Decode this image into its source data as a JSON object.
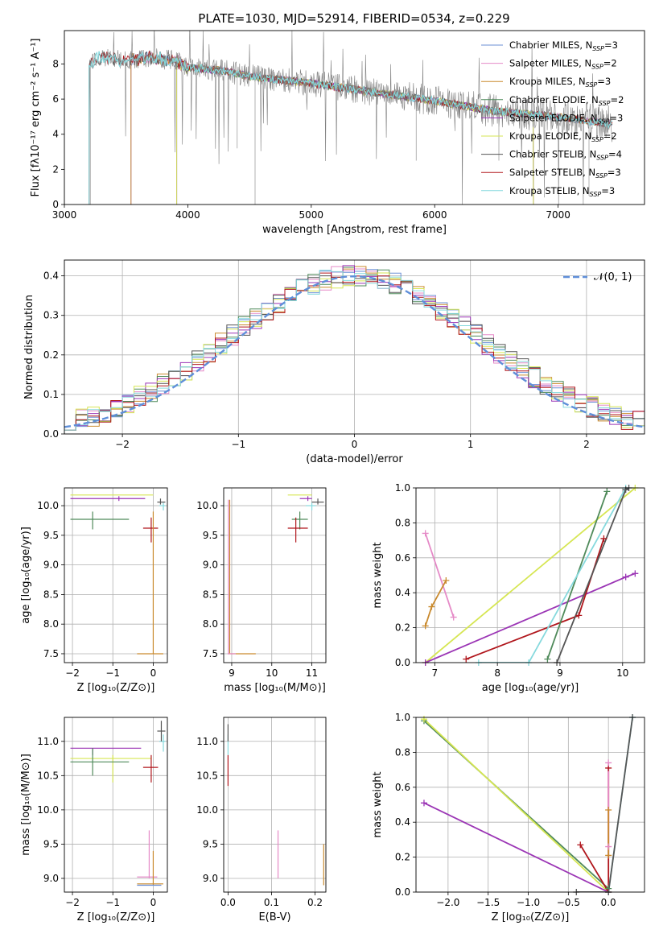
{
  "title": "PLATE=1030, MJD=52914, FIBERID=0534, z=0.229",
  "colors": {
    "Chabrier MILES": "#6b8fd6",
    "Salpeter MILES": "#e58ac7",
    "Kroupa MILES": "#c98a2e",
    "Chabrier ELODIE": "#4f8a5a",
    "Salpeter ELODIE": "#9b35b5",
    "Kroupa ELODIE": "#d6e653",
    "Chabrier STELIB": "#555555",
    "Salpeter STELIB": "#b0161c",
    "Kroupa STELIB": "#86d9dd",
    "data": "#808080",
    "gaussian": "#5f8fd9",
    "orange": "#e07b39"
  },
  "chart_data": [
    {
      "id": "spectrum",
      "type": "line",
      "xlabel": "wavelength [Angstrom, rest frame]",
      "ylabel": "Flux [fλ10⁻¹⁷ erg cm⁻² s⁻¹ A⁻¹]",
      "xlim": [
        3000,
        7700
      ],
      "ylim": [
        0,
        9.9
      ],
      "xticks": [
        "3000",
        "4000",
        "5000",
        "6000",
        "7000"
      ],
      "yticks": [
        "0",
        "2",
        "4",
        "6",
        "8"
      ],
      "legend_position": "upper-right",
      "legend": [
        {
          "name": "Chabrier MILES",
          "sub": "3"
        },
        {
          "name": "Salpeter MILES",
          "sub": "2"
        },
        {
          "name": "Kroupa MILES",
          "sub": "3"
        },
        {
          "name": "Chabrier ELODIE",
          "sub": "2"
        },
        {
          "name": "Salpeter ELODIE",
          "sub": "3"
        },
        {
          "name": "Kroupa ELODIE",
          "sub": "2"
        },
        {
          "name": "Chabrier STELIB",
          "sub": "4"
        },
        {
          "name": "Salpeter STELIB",
          "sub": "3"
        },
        {
          "name": "Kroupa STELIB",
          "sub": "3"
        }
      ],
      "continuum": [
        [
          3200,
          8.0
        ],
        [
          3300,
          8.4
        ],
        [
          3500,
          8.2
        ],
        [
          3700,
          8.35
        ],
        [
          3900,
          8.2
        ],
        [
          4000,
          7.8
        ],
        [
          4300,
          7.6
        ],
        [
          4500,
          7.3
        ],
        [
          5000,
          6.9
        ],
        [
          5500,
          6.4
        ],
        [
          6000,
          5.9
        ],
        [
          6500,
          5.3
        ],
        [
          7000,
          5.0
        ],
        [
          7400,
          4.6
        ]
      ],
      "model_starts": {
        "Kroupa STELIB": 3200,
        "Salpeter STELIB": 3200,
        "Chabrier STELIB": 3200,
        "Kroupa MILES": 3540,
        "Salpeter MILES": 3540,
        "Chabrier MILES": 3540,
        "Kroupa ELODIE": 3910,
        "Salpeter ELODIE": 3910,
        "Chabrier ELODIE": 3910
      },
      "model_ends": {
        "Chabrier ELODIE": 6800,
        "Salpeter ELODIE": 6800,
        "Kroupa ELODIE": 6800
      },
      "data_range": [
        3200,
        7440
      ]
    },
    {
      "id": "residuals",
      "type": "bar",
      "xlabel": "(data-model)/error",
      "ylabel": "Normed distribution",
      "xlim": [
        -2.5,
        2.5
      ],
      "ylim": [
        0,
        0.44
      ],
      "xticks": [
        "−2",
        "−1",
        "0",
        "1",
        "2"
      ],
      "yticks": [
        "0.0",
        "0.1",
        "0.2",
        "0.3",
        "0.4"
      ],
      "grid": true,
      "legend_position": "upper-right",
      "legend": [
        "𝒩(0, 1)"
      ],
      "gaussian": {
        "mean": 0,
        "sigma": 1
      }
    },
    {
      "id": "age-vs-Z",
      "type": "scatter",
      "xlabel": "Z [log₁₀(Z/Z⊙)]",
      "ylabel": "age  [log₁₀(age/yr)]",
      "xlim": [
        -2.2,
        0.35
      ],
      "ylim": [
        7.35,
        10.3
      ],
      "xticks": [
        "−2",
        "−1",
        "0"
      ],
      "yticks": [
        "7.5",
        "8.0",
        "8.5",
        "9.0",
        "9.5",
        "10.0"
      ],
      "grid": true,
      "points": [
        {
          "s": "Kroupa ELODIE",
          "x": -1.0,
          "y": 10.18,
          "xe": [
            -2.05,
            0.0
          ],
          "ye": [
            10.18,
            10.18
          ]
        },
        {
          "s": "Salpeter ELODIE",
          "x": -0.85,
          "y": 10.12,
          "xe": [
            -2.05,
            -0.2
          ],
          "ye": [
            10.08,
            10.16
          ]
        },
        {
          "s": "Chabrier ELODIE",
          "x": -1.5,
          "y": 9.77,
          "xe": [
            -2.05,
            -0.6
          ],
          "ye": [
            9.6,
            9.9
          ]
        },
        {
          "s": "Salpeter STELIB",
          "x": -0.05,
          "y": 9.62,
          "xe": [
            -0.25,
            0.12
          ],
          "ye": [
            9.38,
            9.8
          ]
        },
        {
          "s": "Kroupa STELIB",
          "x": 0.25,
          "y": 10.0,
          "xe": [
            0.15,
            0.3
          ],
          "ye": [
            9.92,
            10.05
          ]
        },
        {
          "s": "Chabrier STELIB",
          "x": 0.18,
          "y": 10.06,
          "xe": [
            0.1,
            0.3
          ],
          "ye": [
            10.02,
            10.12
          ]
        },
        {
          "s": "Kroupa MILES",
          "x": 0.0,
          "y": 7.5,
          "xe": [
            -0.4,
            0.25
          ],
          "ye": [
            7.5,
            9.9
          ]
        }
      ]
    },
    {
      "id": "age-vs-mass",
      "type": "scatter",
      "xlabel": "mass [log₁₀(M/M⊙)]",
      "xlim": [
        8.8,
        11.35
      ],
      "ylim": [
        7.35,
        10.3
      ],
      "xticks": [
        "9",
        "10",
        "11"
      ],
      "yticks": [
        "7.5",
        "8.0",
        "8.5",
        "9.0",
        "9.5",
        "10.0"
      ],
      "grid": true,
      "points": [
        {
          "s": "Kroupa ELODIE",
          "x": 10.75,
          "y": 10.18,
          "xe": [
            10.4,
            11.0
          ],
          "ye": [
            10.18,
            10.18
          ]
        },
        {
          "s": "Salpeter ELODIE",
          "x": 10.9,
          "y": 10.12,
          "xe": [
            10.7,
            11.0
          ],
          "ye": [
            10.08,
            10.16
          ]
        },
        {
          "s": "Chabrier ELODIE",
          "x": 10.7,
          "y": 9.77,
          "xe": [
            10.5,
            10.9
          ],
          "ye": [
            9.6,
            9.9
          ]
        },
        {
          "s": "Salpeter STELIB",
          "x": 10.6,
          "y": 9.62,
          "xe": [
            10.4,
            10.9
          ],
          "ye": [
            9.38,
            9.8
          ]
        },
        {
          "s": "Kroupa STELIB",
          "x": 11.0,
          "y": 10.0,
          "xe": [
            10.85,
            11.1
          ],
          "ye": [
            9.92,
            10.05
          ]
        },
        {
          "s": "Chabrier STELIB",
          "x": 11.15,
          "y": 10.06,
          "xe": [
            11.0,
            11.3
          ],
          "ye": [
            10.02,
            10.12
          ]
        },
        {
          "s": "Kroupa MILES",
          "x": 8.95,
          "y": 7.5,
          "xe": [
            8.9,
            9.6
          ],
          "ye": [
            7.5,
            10.1
          ]
        },
        {
          "s": "Salpeter MILES",
          "x": 8.92,
          "y": 7.5,
          "xe": [
            8.9,
            9.1
          ],
          "ye": [
            7.5,
            10.1
          ]
        }
      ]
    },
    {
      "id": "massweight-vs-age",
      "type": "line",
      "xlabel": "age  [log₁₀(age/yr)]",
      "ylabel": "mass weight",
      "xlim": [
        6.7,
        10.35
      ],
      "ylim": [
        0,
        1
      ],
      "xticks": [
        "7",
        "8",
        "9",
        "10"
      ],
      "yticks": [
        "0.0",
        "0.2",
        "0.4",
        "0.6",
        "0.8",
        "1.0"
      ],
      "grid": true,
      "series": [
        {
          "s": "Salpeter MILES",
          "x": [
            6.85,
            7.3
          ],
          "y": [
            0.74,
            0.26
          ]
        },
        {
          "s": "Kroupa MILES",
          "x": [
            6.85,
            6.95,
            7.18
          ],
          "y": [
            0.21,
            0.32,
            0.47
          ]
        },
        {
          "s": "Kroupa ELODIE",
          "x": [
            6.85,
            10.2
          ],
          "y": [
            0.0,
            1.0
          ]
        },
        {
          "s": "Salpeter ELODIE",
          "x": [
            6.85,
            10.05,
            10.2
          ],
          "y": [
            0.0,
            0.49,
            0.51
          ]
        },
        {
          "s": "Salpeter STELIB",
          "x": [
            7.5,
            9.3,
            9.7
          ],
          "y": [
            0.02,
            0.27,
            0.71
          ]
        },
        {
          "s": "Chabrier ELODIE",
          "x": [
            8.8,
            9.75
          ],
          "y": [
            0.02,
            0.98
          ]
        },
        {
          "s": "Kroupa STELIB",
          "x": [
            7.7,
            8.5,
            10.05
          ],
          "y": [
            0.0,
            0.0,
            1.0
          ]
        },
        {
          "s": "Chabrier STELIB",
          "x": [
            8.95,
            10.05,
            10.1
          ],
          "y": [
            0.0,
            0.99,
            1.0
          ]
        }
      ]
    },
    {
      "id": "mass-vs-Z",
      "type": "scatter",
      "xlabel": "Z [log₁₀(Z/Z⊙)]",
      "ylabel": "mass [log₁₀(M/M⊙)]",
      "xlim": [
        -2.2,
        0.35
      ],
      "ylim": [
        8.8,
        11.35
      ],
      "xticks": [
        "−2",
        "−1",
        "0"
      ],
      "yticks": [
        "9.0",
        "9.5",
        "10.0",
        "10.5",
        "11.0"
      ],
      "grid": true,
      "points": [
        {
          "s": "Salpeter ELODIE",
          "x": -1.5,
          "y": 10.9,
          "xe": [
            -2.05,
            -0.3
          ],
          "ye": [
            10.8,
            10.9
          ]
        },
        {
          "s": "Kroupa ELODIE",
          "x": -1.0,
          "y": 10.75,
          "xe": [
            -2.05,
            -0.05
          ],
          "ye": [
            10.4,
            10.8
          ]
        },
        {
          "s": "Chabrier ELODIE",
          "x": -1.5,
          "y": 10.7,
          "xe": [
            -2.05,
            -0.6
          ],
          "ye": [
            10.5,
            10.9
          ]
        },
        {
          "s": "Salpeter STELIB",
          "x": -0.05,
          "y": 10.62,
          "xe": [
            -0.25,
            0.12
          ],
          "ye": [
            10.4,
            10.8
          ]
        },
        {
          "s": "Kroupa STELIB",
          "x": 0.25,
          "y": 11.0,
          "xe": [
            0.15,
            0.3
          ],
          "ye": [
            10.85,
            11.1
          ]
        },
        {
          "s": "Chabrier STELIB",
          "x": 0.2,
          "y": 11.15,
          "xe": [
            0.1,
            0.3
          ],
          "ye": [
            11.0,
            11.3
          ]
        },
        {
          "s": "Salpeter MILES",
          "x": -0.1,
          "y": 9.02,
          "xe": [
            -0.4,
            0.1
          ],
          "ye": [
            9.0,
            9.7
          ]
        },
        {
          "s": "Kroupa MILES",
          "x": 0.0,
          "y": 8.92,
          "xe": [
            -0.4,
            0.25
          ],
          "ye": [
            8.9,
            9.4
          ]
        },
        {
          "s": "Chabrier MILES",
          "x": 0.0,
          "y": 8.9,
          "xe": [
            -0.4,
            0.2
          ],
          "ye": [
            8.9,
            8.9
          ]
        }
      ]
    },
    {
      "id": "mass-vs-EBV",
      "type": "scatter",
      "xlabel": "E(B-V)",
      "xlim": [
        -0.01,
        0.225
      ],
      "ylim": [
        8.8,
        11.35
      ],
      "xticks": [
        "0.0",
        "0.1",
        "0.2"
      ],
      "yticks": [
        "9.0",
        "9.5",
        "10.0",
        "10.5",
        "11.0"
      ],
      "grid": true,
      "points": [
        {
          "s": "Salpeter STELIB",
          "x": 0.0,
          "y": 10.62,
          "xe": [
            0.0,
            0.0
          ],
          "ye": [
            10.35,
            10.8
          ]
        },
        {
          "s": "Kroupa STELIB",
          "x": 0.0,
          "y": 11.0,
          "xe": [
            0.0,
            0.0
          ],
          "ye": [
            10.8,
            11.1
          ]
        },
        {
          "s": "Chabrier STELIB",
          "x": 0.0,
          "y": 11.15,
          "xe": [
            0.0,
            0.0
          ],
          "ye": [
            11.0,
            11.25
          ]
        },
        {
          "s": "Salpeter MILES",
          "x": 0.115,
          "y": 9.35,
          "xe": [
            0.115,
            0.115
          ],
          "ye": [
            9.0,
            9.7
          ]
        },
        {
          "s": "Kroupa MILES",
          "x": 0.22,
          "y": 9.2,
          "xe": [
            0.22,
            0.22
          ],
          "ye": [
            8.9,
            9.5
          ]
        }
      ]
    },
    {
      "id": "massweight-vs-Z",
      "type": "line",
      "xlabel": "Z [log₁₀(Z/Z⊙)]",
      "ylabel": "mass weight",
      "xlim": [
        -2.4,
        0.45
      ],
      "ylim": [
        0,
        1
      ],
      "xticks": [
        "−2.0",
        "−1.5",
        "−1.0",
        "−0.5",
        "0.0"
      ],
      "yticks": [
        "0.0",
        "0.2",
        "0.4",
        "0.6",
        "0.8",
        "1.0"
      ],
      "grid": true,
      "series": [
        {
          "s": "Chabrier ELODIE",
          "x": [
            -2.3,
            0.0
          ],
          "y": [
            0.98,
            0.02
          ]
        },
        {
          "s": "Kroupa ELODIE",
          "x": [
            -2.3,
            0.0
          ],
          "y": [
            0.99,
            0.0
          ]
        },
        {
          "s": "Salpeter ELODIE",
          "x": [
            -2.3,
            0.0
          ],
          "y": [
            0.51,
            0.0
          ]
        },
        {
          "s": "Salpeter STELIB",
          "x": [
            -0.35,
            0.0,
            0.0
          ],
          "y": [
            0.27,
            0.0,
            0.71
          ]
        },
        {
          "s": "Kroupa STELIB",
          "x": [
            0.0,
            0.3
          ],
          "y": [
            0.0,
            1.0
          ]
        },
        {
          "s": "Chabrier STELIB",
          "x": [
            -0.4,
            0.0,
            0.3
          ],
          "y": [
            0.0,
            0.0,
            1.0
          ]
        },
        {
          "s": "Salpeter MILES",
          "x": [
            0.0,
            0.0
          ],
          "y": [
            0.26,
            0.74
          ]
        },
        {
          "s": "Kroupa MILES",
          "x": [
            0.0,
            0.0
          ],
          "y": [
            0.21,
            0.47
          ]
        }
      ]
    }
  ]
}
